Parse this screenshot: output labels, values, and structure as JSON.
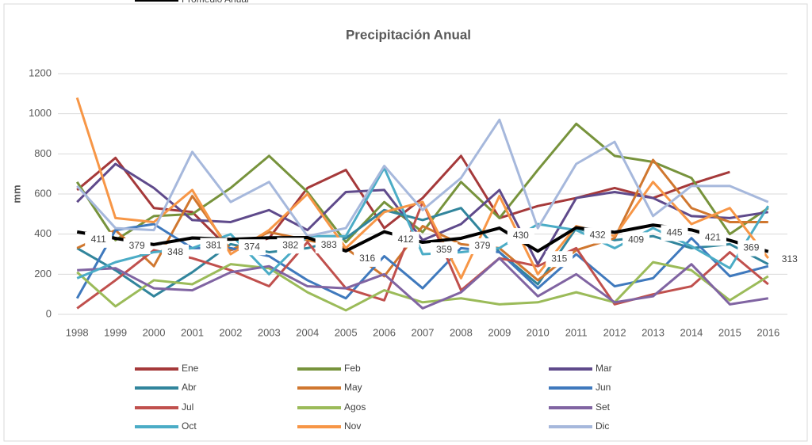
{
  "chart_data": {
    "type": "line",
    "title": "Precipitación Anual",
    "y_label": "mm",
    "categories": [
      "1998",
      "1999",
      "2000",
      "2001",
      "2002",
      "2003",
      "2004",
      "2005",
      "2006",
      "2007",
      "2008",
      "2009",
      "2010",
      "2011",
      "2012",
      "2013",
      "2014",
      "2015",
      "2016"
    ],
    "ylim": [
      0,
      1200
    ],
    "yticks": [
      0,
      200,
      400,
      600,
      800,
      1000,
      1200
    ],
    "grid": true,
    "series": [
      {
        "name": "Ene",
        "color": "#a5393a",
        "values": [
          620,
          780,
          530,
          510,
          320,
          380,
          630,
          720,
          430,
          580,
          790,
          480,
          540,
          580,
          630,
          580,
          650,
          710,
          null
        ]
      },
      {
        "name": "Feb",
        "color": "#77933c",
        "values": [
          660,
          370,
          490,
          500,
          630,
          790,
          610,
          360,
          560,
          410,
          660,
          480,
          720,
          950,
          790,
          760,
          680,
          400,
          530
        ]
      },
      {
        "name": "Mar",
        "color": "#5f4a8b",
        "values": [
          560,
          750,
          630,
          470,
          460,
          520,
          420,
          610,
          620,
          370,
          450,
          620,
          250,
          580,
          610,
          580,
          490,
          480,
          510
        ]
      },
      {
        "name": "Abr",
        "color": "#31859c",
        "values": [
          330,
          220,
          90,
          210,
          350,
          310,
          330,
          380,
          520,
          470,
          530,
          310,
          150,
          430,
          370,
          390,
          330,
          350,
          250
        ]
      },
      {
        "name": "May",
        "color": "#d0772f",
        "values": [
          330,
          420,
          240,
          590,
          320,
          410,
          370,
          330,
          190,
          440,
          350,
          330,
          170,
          320,
          380,
          770,
          530,
          460,
          460
        ]
      },
      {
        "name": "Jun",
        "color": "#3f79bd",
        "values": [
          80,
          420,
          450,
          330,
          330,
          290,
          170,
          80,
          290,
          130,
          330,
          310,
          130,
          300,
          140,
          180,
          380,
          190,
          240
        ]
      },
      {
        "name": "Jul",
        "color": "#c0504d",
        "values": [
          30,
          170,
          320,
          280,
          220,
          140,
          360,
          130,
          70,
          560,
          120,
          280,
          240,
          330,
          50,
          100,
          140,
          310,
          150
        ]
      },
      {
        "name": "Agos",
        "color": "#9bbb59",
        "values": [
          210,
          40,
          170,
          150,
          250,
          230,
          110,
          20,
          120,
          60,
          80,
          50,
          60,
          110,
          60,
          260,
          220,
          70,
          190
        ]
      },
      {
        "name": "Set",
        "color": "#8064a2",
        "values": [
          220,
          230,
          130,
          120,
          210,
          240,
          140,
          130,
          200,
          30,
          110,
          280,
          90,
          200,
          60,
          90,
          250,
          50,
          80
        ]
      },
      {
        "name": "Oct",
        "color": "#4bacc6",
        "values": [
          180,
          260,
          310,
          330,
          400,
          200,
          390,
          390,
          730,
          300,
          310,
          330,
          450,
          420,
          330,
          430,
          340,
          230,
          540
        ]
      },
      {
        "name": "Nov",
        "color": "#f79646",
        "values": [
          1080,
          480,
          460,
          620,
          300,
          420,
          600,
          330,
          510,
          560,
          180,
          590,
          200,
          440,
          390,
          660,
          450,
          530,
          280
        ]
      },
      {
        "name": "Dic",
        "color": "#a6b8dc",
        "values": [
          640,
          430,
          420,
          810,
          560,
          660,
          390,
          430,
          740,
          520,
          680,
          970,
          430,
          750,
          860,
          490,
          640,
          640,
          560
        ]
      },
      {
        "name": "Promedio Anual",
        "color": "#000000",
        "width": 4,
        "data_labels": true,
        "values": [
          411,
          379,
          348,
          381,
          374,
          382,
          383,
          316,
          412,
          359,
          379,
          430,
          315,
          432,
          409,
          445,
          421,
          369,
          313
        ]
      }
    ]
  }
}
